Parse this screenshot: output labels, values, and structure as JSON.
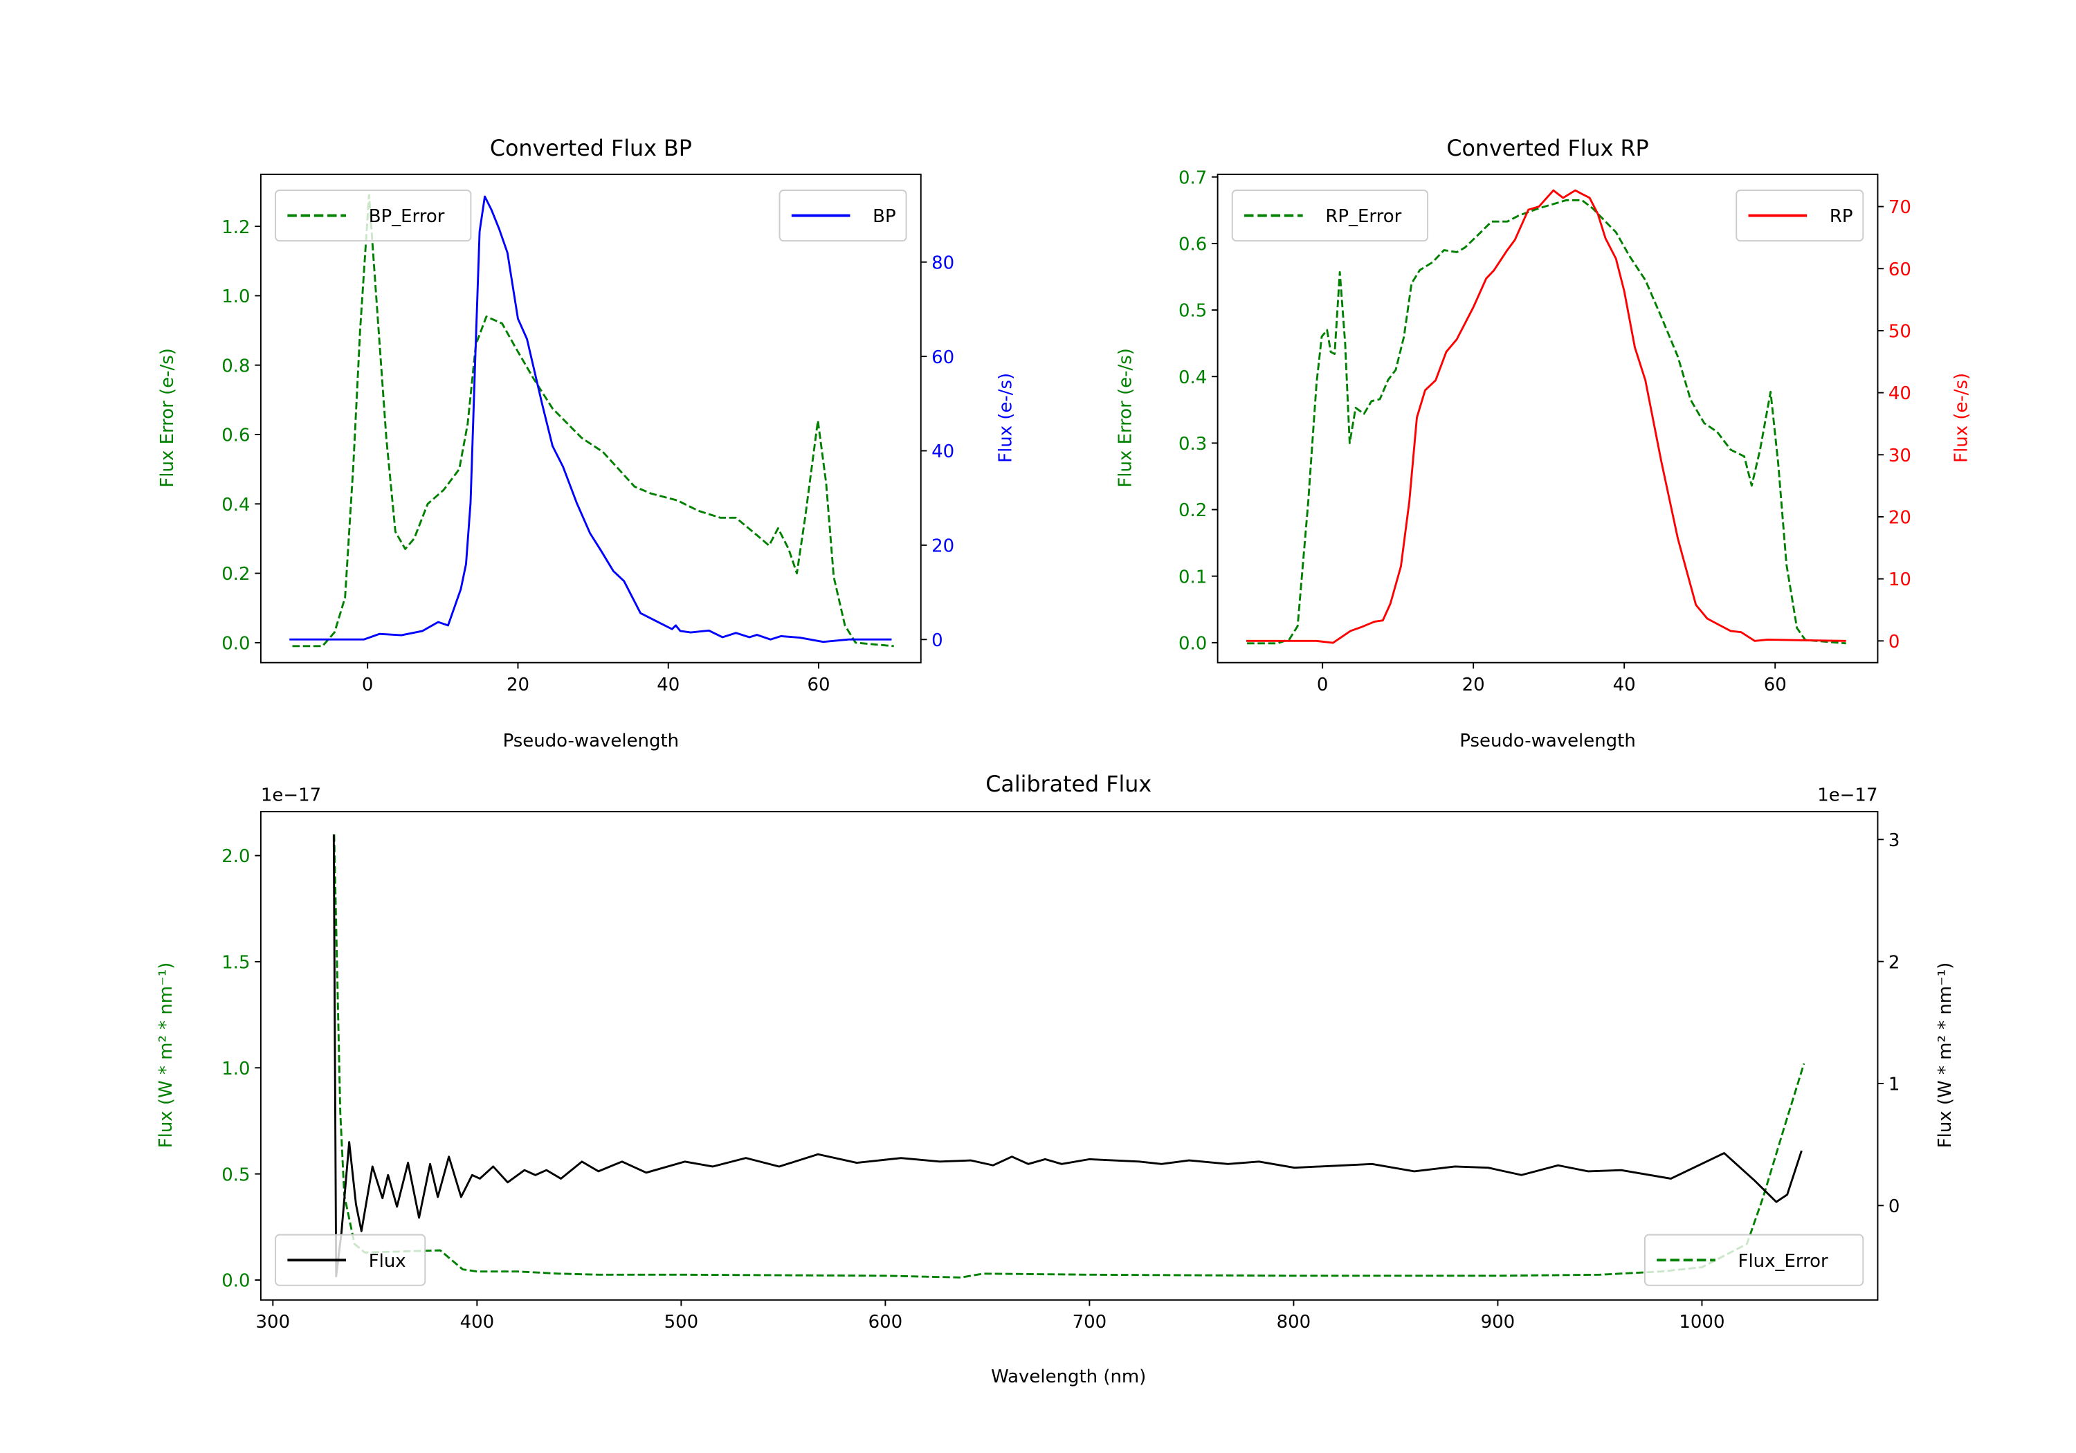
{
  "figure": {
    "colors": {
      "green": "#008000",
      "blue": "#0000ff",
      "red": "#ff0000",
      "black": "#000000"
    }
  },
  "chart_data": [
    {
      "id": "bp",
      "type": "line",
      "title": "Converted Flux BP",
      "xlabel": "Pseudo-wavelength",
      "ylabel_left": "Flux Error (e-/s)",
      "ylabel_right": "Flux (e-/s)",
      "xlim": [
        -14.2,
        73.6
      ],
      "ylim_left": [
        -0.0575,
        1.35
      ],
      "ylim_right": [
        -4.9,
        98.6
      ],
      "xticks": [
        0,
        20,
        40,
        60
      ],
      "xtick_labels": [
        "0",
        "20",
        "40",
        "60"
      ],
      "yticks_left": [
        0,
        0.2,
        0.4,
        0.6,
        0.8,
        1.0,
        1.2
      ],
      "ytick_labels_left": [
        "0.0",
        "0.2",
        "0.4",
        "0.6",
        "0.8",
        "1.0",
        "1.2"
      ],
      "yticks_right": [
        0,
        20,
        40,
        60,
        80
      ],
      "ytick_labels_right": [
        "0",
        "20",
        "40",
        "60",
        "80"
      ],
      "left_color": "#008000",
      "right_color": "#0000ff",
      "legend_left": {
        "label": "BP_Error",
        "placement": "upper-left"
      },
      "legend_right": {
        "label": "BP",
        "placement": "upper-right"
      },
      "series": [
        {
          "name": "BP_Error",
          "axis": "left",
          "color": "#008000",
          "style": "dashed",
          "x": [
            -10,
            -6,
            -4.4,
            -3,
            -1.9,
            -1,
            0.2,
            1.3,
            2.5,
            3.7,
            5,
            6.2,
            8,
            10.1,
            12.2,
            13.3,
            14.4,
            15.8,
            17.9,
            19.7,
            22.1,
            24.6,
            28.5,
            31.3,
            33.4,
            35.5,
            37.7,
            41.2,
            44,
            46.9,
            49,
            51.8,
            53.4,
            54.6,
            56,
            57.1,
            58.2,
            59.9,
            61,
            62,
            63.5,
            64.9,
            70
          ],
          "y": [
            -0.01,
            -0.01,
            0.03,
            0.13,
            0.51,
            0.9,
            1.29,
            0.95,
            0.59,
            0.32,
            0.27,
            0.3,
            0.4,
            0.44,
            0.5,
            0.63,
            0.86,
            0.94,
            0.92,
            0.85,
            0.76,
            0.675,
            0.59,
            0.55,
            0.5,
            0.45,
            0.43,
            0.41,
            0.38,
            0.36,
            0.36,
            0.31,
            0.28,
            0.33,
            0.27,
            0.2,
            0.36,
            0.64,
            0.46,
            0.19,
            0.05,
            0,
            -0.01
          ]
        },
        {
          "name": "BP",
          "axis": "right",
          "color": "#0000ff",
          "style": "solid",
          "x": [
            -10.4,
            -5,
            -0.5,
            1.6,
            4.5,
            7.3,
            9.4,
            10.7,
            12.4,
            13.1,
            13.7,
            14.3,
            14.9,
            15.6,
            16.5,
            17.5,
            18.6,
            20,
            21.2,
            23.2,
            24.6,
            26,
            27.8,
            29.6,
            31,
            32.7,
            34.1,
            36.3,
            38.4,
            40.5,
            41,
            41.6,
            43,
            45.4,
            47.2,
            49,
            50.8,
            51.8,
            53.6,
            55,
            57.5,
            60.6,
            64,
            69.7
          ],
          "y": [
            0,
            0,
            0,
            1.2,
            0.9,
            1.8,
            3.7,
            3,
            10.7,
            16,
            29,
            58.5,
            86.5,
            93.9,
            91,
            87,
            82,
            68,
            63.7,
            50,
            41,
            36.6,
            29,
            22.5,
            19,
            14.5,
            12.4,
            5.6,
            3.9,
            2.2,
            3,
            1.8,
            1.5,
            1.9,
            0.5,
            1.4,
            0.5,
            1,
            0,
            0.7,
            0.4,
            -0.5,
            0,
            0
          ]
        }
      ]
    },
    {
      "id": "rp",
      "type": "line",
      "title": "Converted Flux RP",
      "xlabel": "Pseudo-wavelength",
      "ylabel_left": "Flux Error (e-/s)",
      "ylabel_right": "Flux (e-/s)",
      "xlim": [
        -13.9,
        73.6
      ],
      "ylim_left": [
        -0.03,
        0.704
      ],
      "ylim_right": [
        -3.5,
        75.2
      ],
      "xticks": [
        0,
        20,
        40,
        60
      ],
      "xtick_labels": [
        "0",
        "20",
        "40",
        "60"
      ],
      "yticks_left": [
        0,
        0.1,
        0.2,
        0.3,
        0.4,
        0.5,
        0.6,
        0.7
      ],
      "ytick_labels_left": [
        "0.0",
        "0.1",
        "0.2",
        "0.3",
        "0.4",
        "0.5",
        "0.6",
        "0.7"
      ],
      "yticks_right": [
        0,
        10,
        20,
        30,
        40,
        50,
        60,
        70
      ],
      "ytick_labels_right": [
        "0",
        "10",
        "20",
        "30",
        "40",
        "50",
        "60",
        "70"
      ],
      "left_color": "#008000",
      "right_color": "#ff0000",
      "legend_left": {
        "label": "RP_Error",
        "placement": "upper-left"
      },
      "legend_right": {
        "label": "RP",
        "placement": "upper-right"
      },
      "series": [
        {
          "name": "RP_Error",
          "axis": "left",
          "color": "#008000",
          "style": "dashed",
          "x": [
            -10,
            -6,
            -4.4,
            -3.3,
            -1.9,
            -0.8,
            -0.1,
            0.6,
            1.1,
            1.6,
            2.3,
            3,
            3.6,
            4.4,
            5.5,
            6.5,
            7.6,
            8.7,
            9.7,
            10.8,
            11.8,
            12.9,
            14.6,
            16.1,
            17.8,
            18.9,
            21,
            22.4,
            24.5,
            26,
            28.7,
            32.3,
            34.4,
            35.8,
            37.5,
            38.9,
            40.7,
            42.8,
            44.9,
            47.1,
            48.8,
            50.6,
            52.3,
            54.1,
            55.9,
            56.9,
            58,
            59.4,
            60.4,
            61.5,
            62.9,
            64,
            69.4
          ],
          "y": [
            -0.001,
            -0.001,
            0.005,
            0.025,
            0.21,
            0.39,
            0.46,
            0.47,
            0.437,
            0.434,
            0.557,
            0.45,
            0.3,
            0.353,
            0.344,
            0.363,
            0.366,
            0.395,
            0.41,
            0.46,
            0.54,
            0.56,
            0.572,
            0.59,
            0.587,
            0.594,
            0.617,
            0.633,
            0.633,
            0.642,
            0.653,
            0.665,
            0.665,
            0.653,
            0.633,
            0.617,
            0.581,
            0.545,
            0.49,
            0.43,
            0.365,
            0.33,
            0.317,
            0.29,
            0.28,
            0.236,
            0.29,
            0.377,
            0.27,
            0.118,
            0.022,
            0.004,
            -0.001
          ]
        },
        {
          "name": "RP",
          "axis": "right",
          "color": "#ff0000",
          "style": "solid",
          "x": [
            -10.1,
            -5,
            -0.8,
            1.4,
            3.7,
            5.1,
            6.9,
            8,
            9,
            10.4,
            11.5,
            12.5,
            13.6,
            15,
            16.4,
            17.8,
            20,
            21.7,
            22.7,
            24.5,
            25.5,
            27.3,
            28.7,
            30.6,
            31.9,
            33.5,
            35.4,
            36.5,
            37.5,
            38.9,
            40,
            41.4,
            42.8,
            44.9,
            47.1,
            48.1,
            49.5,
            51,
            52.7,
            54.1,
            55.5,
            57.3,
            59,
            64,
            69.4
          ],
          "y": [
            0,
            0,
            0,
            -0.3,
            1.6,
            2.2,
            3.1,
            3.3,
            6,
            12,
            22.4,
            36,
            40.4,
            42,
            46.6,
            48.6,
            53.8,
            58.4,
            59.7,
            63,
            64.6,
            69.5,
            70,
            72.6,
            71.4,
            72.6,
            71.4,
            68.8,
            64.9,
            61.6,
            56.4,
            47.3,
            42,
            29,
            16.5,
            12,
            5.8,
            3.6,
            2.5,
            1.6,
            1.4,
            0,
            0.2,
            0.1,
            0
          ]
        }
      ]
    },
    {
      "id": "cal",
      "type": "line",
      "title": "Calibrated Flux",
      "xlabel": "Wavelength (nm)",
      "ylabel_left": "Flux (W * m² * nm⁻¹)",
      "ylabel_right": "Flux (W * m² * nm⁻¹)",
      "offset_left": "1e−17",
      "offset_right": "1e−17",
      "xlim": [
        294.1,
        1086.1
      ],
      "ylim_left": [
        -0.094,
        2.207
      ],
      "ylim_right": [
        -0.774,
        3.228
      ],
      "xticks": [
        300,
        400,
        500,
        600,
        700,
        800,
        900,
        1000
      ],
      "xtick_labels": [
        "300",
        "400",
        "500",
        "600",
        "700",
        "800",
        "900",
        "1000"
      ],
      "yticks_left": [
        0,
        0.5,
        1.0,
        1.5,
        2.0
      ],
      "ytick_labels_left": [
        "0.0",
        "0.5",
        "1.0",
        "1.5",
        "2.0"
      ],
      "yticks_right": [
        0,
        1,
        2,
        3
      ],
      "ytick_labels_right": [
        "0",
        "1",
        "2",
        "3"
      ],
      "left_color": "#008000",
      "right_color": "#000000",
      "legend_left": {
        "label": "Flux",
        "placement": "lower-left"
      },
      "legend_right": {
        "label": "Flux_Error",
        "placement": "lower-right"
      },
      "series": [
        {
          "name": "Flux_Error",
          "axis": "left",
          "color": "#008000",
          "style": "dashed",
          "x": [
            330,
            333,
            335,
            340,
            345,
            382,
            393,
            400,
            420,
            440,
            460,
            500,
            600,
            637,
            648,
            700,
            800,
            900,
            950,
            980,
            1000,
            1022,
            1030,
            1040,
            1050
          ],
          "y": [
            2.1,
            0.79,
            0.4,
            0.17,
            0.13,
            0.14,
            0.05,
            0.04,
            0.04,
            0.03,
            0.025,
            0.025,
            0.02,
            0.012,
            0.03,
            0.025,
            0.02,
            0.02,
            0.025,
            0.04,
            0.06,
            0.17,
            0.39,
            0.71,
            1.02
          ]
        },
        {
          "name": "Flux",
          "axis": "right",
          "color": "#000000",
          "style": "solid",
          "x": [
            329.8,
            331,
            333.6,
            337.4,
            340.7,
            343.4,
            348.8,
            353.7,
            356.4,
            360.8,
            366.2,
            371.6,
            377,
            380.8,
            386.2,
            392.2,
            397.6,
            401.4,
            407.9,
            415,
            423.2,
            428.6,
            434,
            441.1,
            451.4,
            459.5,
            471,
            482.9,
            501.8,
            515.4,
            531.7,
            548,
            567,
            586,
            607.7,
            626.7,
            641.9,
            652.8,
            662,
            670,
            678.3,
            686.4,
            700,
            724.4,
            735.3,
            748.8,
            767.8,
            783,
            800.4,
            838.4,
            859,
            879,
            895.3,
            911.6,
            929.5,
            944.2,
            960.4,
            984.8,
            1010.9,
            1025.5,
            1036.4,
            1041.8,
            1048.8
          ],
          "y": [
            3.04,
            -0.58,
            -0.22,
            0.52,
            0.01,
            -0.21,
            0.32,
            0.06,
            0.25,
            -0.01,
            0.35,
            -0.1,
            0.34,
            0.07,
            0.4,
            0.07,
            0.25,
            0.22,
            0.32,
            0.19,
            0.29,
            0.25,
            0.29,
            0.22,
            0.36,
            0.28,
            0.36,
            0.27,
            0.36,
            0.32,
            0.39,
            0.32,
            0.42,
            0.35,
            0.39,
            0.36,
            0.37,
            0.33,
            0.4,
            0.34,
            0.38,
            0.34,
            0.38,
            0.36,
            0.34,
            0.37,
            0.34,
            0.36,
            0.31,
            0.34,
            0.28,
            0.32,
            0.31,
            0.25,
            0.33,
            0.28,
            0.29,
            0.22,
            0.43,
            0.21,
            0.03,
            0.09,
            0.45
          ]
        }
      ]
    }
  ]
}
